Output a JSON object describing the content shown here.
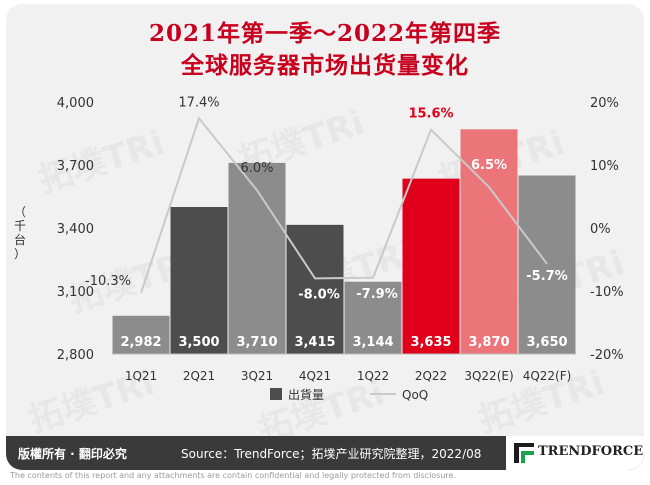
{
  "header": {
    "title_line1": "2021年第一季～2022年第四季",
    "title_line2": "全球服务器市场出货量变化"
  },
  "footer": {
    "rights": "版權所有 · 翻印必究",
    "source": "Source：TrendForce；拓墣产业研究院整理，2022/08",
    "brand": "TRENDFORCE",
    "disclaimer": "The contents of this report and any attachments are contain confidential and legally protected from disclosure."
  },
  "watermark": {
    "text": "拓墣TRi"
  },
  "colors": {
    "title": "#c8001e",
    "bar_gray_dark": "#4d4d4d",
    "bar_gray": "#8c8c8c",
    "bar_red": "#e0001b",
    "bar_pink": "#ec7579",
    "line": "#c9c9c9",
    "qoq_red_label": "#e0001b"
  },
  "chart_data": {
    "type": "bar",
    "categories": [
      "1Q21",
      "2Q21",
      "3Q21",
      "4Q21",
      "1Q22",
      "2Q22",
      "3Q22(E)",
      "4Q22(F)"
    ],
    "y_left": {
      "label": "（千台）",
      "min": 2800,
      "max": 4000,
      "ticks": [
        "2,800",
        "3,100",
        "3,400",
        "3,700",
        "4,000"
      ]
    },
    "y_right": {
      "min": -20,
      "max": 20,
      "ticks": [
        "-20%",
        "-10%",
        "0%",
        "10%",
        "20%"
      ]
    },
    "series": [
      {
        "name": "出貨量",
        "type": "bar",
        "values": [
          2982,
          3500,
          3710,
          3415,
          3144,
          3635,
          3870,
          3650
        ],
        "labels": [
          "2,982",
          "3,500",
          "3,710",
          "3,415",
          "3,144",
          "3,635",
          "3,870",
          "3,650"
        ],
        "colors": [
          "#8c8c8c",
          "#4d4d4d",
          "#8c8c8c",
          "#4d4d4d",
          "#8c8c8c",
          "#e0001b",
          "#ec7579",
          "#8c8c8c"
        ]
      },
      {
        "name": "QoQ",
        "type": "line",
        "axis": "right",
        "values": [
          -10.3,
          17.4,
          6.0,
          -8.0,
          -7.9,
          15.6,
          6.5,
          -5.7
        ],
        "labels": [
          "-10.3%",
          "17.4%",
          "6.0%",
          "-8.0%",
          "-7.9%",
          "15.6%",
          "6.5%",
          "-5.7%"
        ]
      }
    ],
    "legend": {
      "placement": "bottom",
      "items": [
        "出貨量",
        "QoQ"
      ]
    },
    "grid": false
  }
}
